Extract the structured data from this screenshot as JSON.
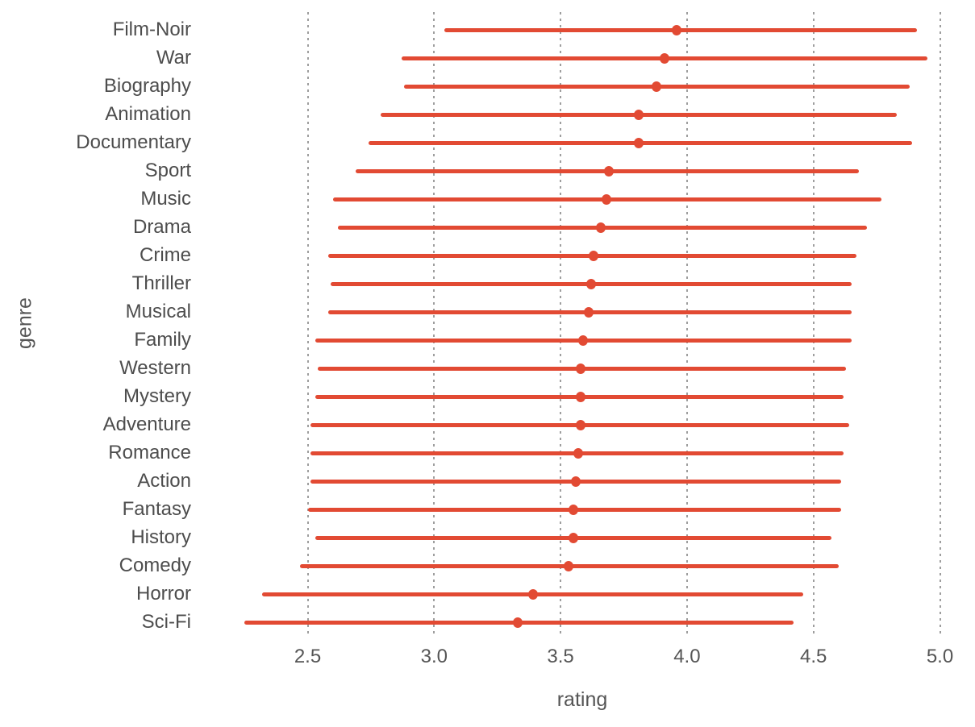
{
  "chart_data": {
    "type": "scatter",
    "subtype": "dot-range (pointrange, horizontal)",
    "title": "",
    "xlabel": "rating",
    "ylabel": "genre",
    "xlim": [
      2.2,
      5.1
    ],
    "x_ticks": [
      2.5,
      3.0,
      3.5,
      4.0,
      4.5,
      5.0
    ],
    "x_tick_labels": [
      "2.5",
      "3.0",
      "3.5",
      "4.0",
      "4.5",
      "5.0"
    ],
    "grid": "vertical dotted gridlines only, no axis lines, no plot border",
    "legend": "none",
    "categories": [
      "Film-Noir",
      "War",
      "Biography",
      "Animation",
      "Documentary",
      "Sport",
      "Music",
      "Drama",
      "Crime",
      "Thriller",
      "Musical",
      "Family",
      "Western",
      "Mystery",
      "Adventure",
      "Romance",
      "Action",
      "Fantasy",
      "History",
      "Comedy",
      "Horror",
      "Sci-Fi"
    ],
    "series": [
      {
        "name": "range_low",
        "values": [
          3.04,
          2.87,
          2.88,
          2.79,
          2.74,
          2.69,
          2.6,
          2.62,
          2.58,
          2.59,
          2.58,
          2.53,
          2.54,
          2.53,
          2.51,
          2.51,
          2.51,
          2.5,
          2.53,
          2.47,
          2.32,
          2.25
        ]
      },
      {
        "name": "point",
        "values": [
          3.96,
          3.91,
          3.88,
          3.81,
          3.81,
          3.69,
          3.68,
          3.66,
          3.63,
          3.62,
          3.61,
          3.59,
          3.58,
          3.58,
          3.58,
          3.57,
          3.56,
          3.55,
          3.55,
          3.53,
          3.39,
          3.33
        ]
      },
      {
        "name": "range_high",
        "values": [
          4.91,
          4.95,
          4.88,
          4.83,
          4.89,
          4.68,
          4.77,
          4.71,
          4.67,
          4.65,
          4.65,
          4.65,
          4.63,
          4.62,
          4.64,
          4.62,
          4.61,
          4.61,
          4.57,
          4.6,
          4.46,
          4.42
        ]
      }
    ],
    "colors": {
      "point_and_line": "#e24a33",
      "gridline": "#9e9e9e",
      "category_label_text": "#4d4d4d",
      "axis_text": "#555555",
      "background": "#ffffff"
    }
  }
}
